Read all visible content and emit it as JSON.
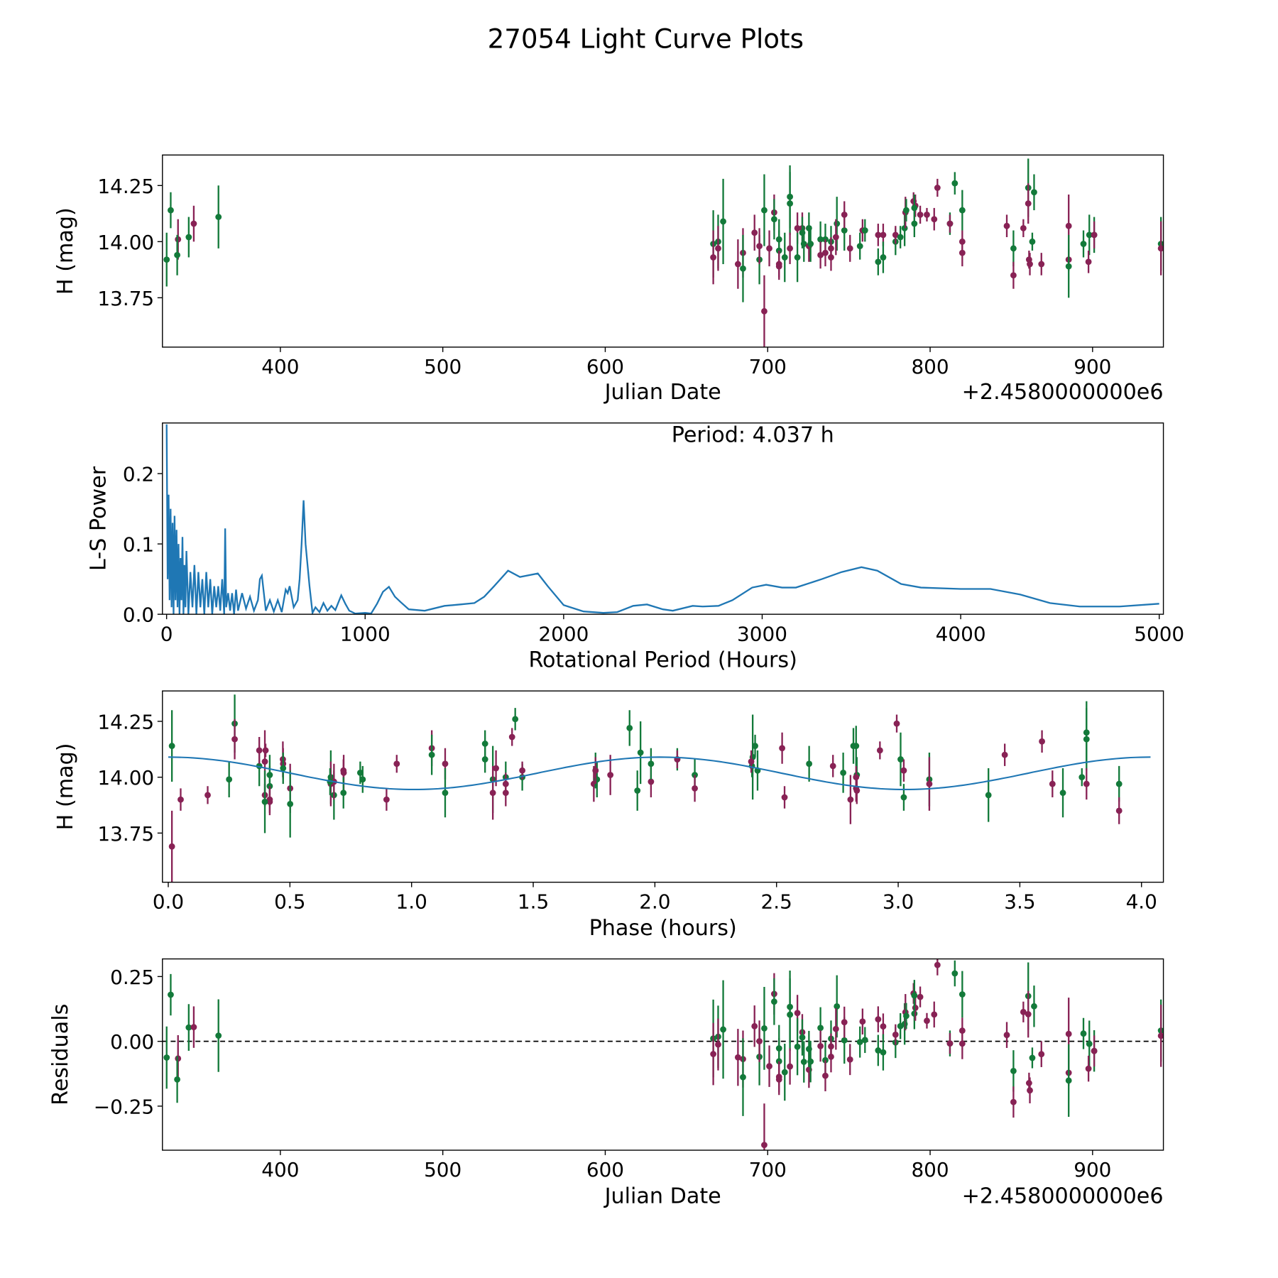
{
  "title": "27054 Light Curve Plots",
  "colors": {
    "g": "#137a3a",
    "m": "#882255",
    "curve": "#1f77b4"
  },
  "chart_data": [
    {
      "id": "lightcurve",
      "type": "scatter",
      "xlabel": "Julian Date",
      "ylabel": "H (mag)",
      "offset_text": "+2.4580000000e6",
      "xlim": [
        327.4,
        943.6
      ],
      "ylim": [
        13.53,
        14.386
      ],
      "xticks": [
        400,
        500,
        600,
        700,
        800,
        900
      ],
      "xtick_labels": [
        "400",
        "500",
        "600",
        "700",
        "800",
        "900"
      ],
      "yticks": [
        13.75,
        14.0,
        14.25
      ],
      "ytick_labels": [
        "13.75",
        "14.00",
        "14.25"
      ],
      "points_format": [
        "jd_offset",
        "H_mag",
        "err",
        "series"
      ],
      "points": [
        [
          330,
          13.92,
          0.12,
          "g"
        ],
        [
          332.5,
          14.14,
          0.08,
          "g"
        ],
        [
          337,
          14.01,
          0.09,
          "m"
        ],
        [
          336.5,
          13.94,
          0.09,
          "g"
        ],
        [
          343.6,
          14.02,
          0.09,
          "g"
        ],
        [
          346.7,
          14.08,
          0.08,
          "m"
        ],
        [
          361.9,
          14.11,
          0.14,
          "g"
        ],
        [
          666.5,
          13.99,
          0.15,
          "g"
        ],
        [
          666.5,
          13.93,
          0.12,
          "m"
        ],
        [
          669.5,
          14.0,
          0.12,
          "g"
        ],
        [
          669.5,
          13.97,
          0.1,
          "m"
        ],
        [
          672.6,
          14.09,
          0.19,
          "g"
        ],
        [
          681.7,
          13.9,
          0.11,
          "m"
        ],
        [
          684.8,
          13.95,
          0.11,
          "m"
        ],
        [
          684.8,
          13.88,
          0.15,
          "g"
        ],
        [
          691.9,
          14.04,
          0.08,
          "m"
        ],
        [
          694.9,
          13.92,
          0.11,
          "g"
        ],
        [
          694.9,
          13.98,
          0.08,
          "m"
        ],
        [
          697.9,
          14.14,
          0.16,
          "g"
        ],
        [
          697.9,
          13.69,
          0.16,
          "m"
        ],
        [
          701,
          13.97,
          0.08,
          "m"
        ],
        [
          704,
          14.13,
          0.08,
          "m"
        ],
        [
          704,
          14.1,
          0.09,
          "g"
        ],
        [
          707,
          14.01,
          0.09,
          "g"
        ],
        [
          707,
          13.96,
          0.09,
          "g"
        ],
        [
          707,
          13.9,
          0.06,
          "m"
        ],
        [
          707,
          13.89,
          0.06,
          "m"
        ],
        [
          710.5,
          13.93,
          0.11,
          "g"
        ],
        [
          713.7,
          14.2,
          0.14,
          "g"
        ],
        [
          713.7,
          14.17,
          0.14,
          "g"
        ],
        [
          713.7,
          13.97,
          0.07,
          "m"
        ],
        [
          718.3,
          14.06,
          0.07,
          "m"
        ],
        [
          718.3,
          13.93,
          0.11,
          "g"
        ],
        [
          721.3,
          14.06,
          0.07,
          "m"
        ],
        [
          721.3,
          14.04,
          0.07,
          "g"
        ],
        [
          722.3,
          13.99,
          0.08,
          "g"
        ],
        [
          725.4,
          13.98,
          0.07,
          "m"
        ],
        [
          725.4,
          14.06,
          0.07,
          "g"
        ],
        [
          726.4,
          13.99,
          0.08,
          "g"
        ],
        [
          732.5,
          14.01,
          0.08,
          "g"
        ],
        [
          732.5,
          13.94,
          0.06,
          "m"
        ],
        [
          735.5,
          14.01,
          0.07,
          "g"
        ],
        [
          735.5,
          13.95,
          0.06,
          "m"
        ],
        [
          739,
          14.0,
          0.07,
          "g"
        ],
        [
          739,
          13.97,
          0.05,
          "m"
        ],
        [
          739,
          13.93,
          0.06,
          "m"
        ],
        [
          742.6,
          14.08,
          0.12,
          "g"
        ],
        [
          742,
          14.02,
          0.08,
          "m"
        ],
        [
          747.2,
          14.05,
          0.09,
          "g"
        ],
        [
          747.2,
          14.12,
          0.06,
          "m"
        ],
        [
          750.7,
          13.97,
          0.06,
          "m"
        ],
        [
          758.4,
          14.05,
          0.05,
          "m"
        ],
        [
          756.8,
          13.98,
          0.06,
          "g"
        ],
        [
          759.9,
          14.05,
          0.05,
          "g"
        ],
        [
          768,
          14.03,
          0.05,
          "m"
        ],
        [
          768,
          13.91,
          0.06,
          "g"
        ],
        [
          771.1,
          14.03,
          0.05,
          "m"
        ],
        [
          771.1,
          13.93,
          0.07,
          "g"
        ],
        [
          778.7,
          14.0,
          0.06,
          "g"
        ],
        [
          778.7,
          14.03,
          0.04,
          "m"
        ],
        [
          781.7,
          14.02,
          0.05,
          "g"
        ],
        [
          784.3,
          14.06,
          0.08,
          "g"
        ],
        [
          784.8,
          14.13,
          0.07,
          "m"
        ],
        [
          785.3,
          14.14,
          0.05,
          "g"
        ],
        [
          789.8,
          14.18,
          0.04,
          "m"
        ],
        [
          790.3,
          14.08,
          0.06,
          "g"
        ],
        [
          790.9,
          14.16,
          0.05,
          "m"
        ],
        [
          790.3,
          14.15,
          0.06,
          "g"
        ],
        [
          793.9,
          14.12,
          0.04,
          "m"
        ],
        [
          798,
          14.12,
          0.03,
          "m"
        ],
        [
          802.5,
          14.1,
          0.05,
          "m"
        ],
        [
          804.5,
          14.24,
          0.04,
          "m"
        ],
        [
          812.2,
          14.08,
          0.05,
          "g"
        ],
        [
          812.2,
          14.08,
          0.04,
          "m"
        ],
        [
          815.2,
          14.26,
          0.05,
          "g"
        ],
        [
          819.8,
          14.14,
          0.09,
          "g"
        ],
        [
          819.8,
          14.0,
          0.05,
          "m"
        ],
        [
          819.8,
          13.95,
          0.06,
          "m"
        ],
        [
          847.2,
          14.07,
          0.05,
          "m"
        ],
        [
          851.3,
          13.97,
          0.08,
          "g"
        ],
        [
          851.3,
          13.85,
          0.06,
          "m"
        ],
        [
          857.4,
          14.06,
          0.04,
          "m"
        ],
        [
          860.4,
          14.24,
          0.13,
          "g"
        ],
        [
          860.4,
          14.17,
          0.09,
          "m"
        ],
        [
          860.9,
          13.92,
          0.04,
          "m"
        ],
        [
          861.4,
          13.9,
          0.05,
          "m"
        ],
        [
          862.9,
          14.0,
          0.04,
          "g"
        ],
        [
          864,
          14.22,
          0.08,
          "g"
        ],
        [
          868.5,
          13.9,
          0.05,
          "m"
        ],
        [
          885.3,
          14.07,
          0.14,
          "m"
        ],
        [
          885.3,
          13.92,
          0.05,
          "m"
        ],
        [
          885.3,
          13.89,
          0.14,
          "g"
        ],
        [
          894.4,
          13.99,
          0.06,
          "g"
        ],
        [
          898,
          14.03,
          0.09,
          "g"
        ],
        [
          897.5,
          13.91,
          0.05,
          "m"
        ],
        [
          901,
          14.03,
          0.08,
          "g"
        ],
        [
          901,
          14.03,
          0.06,
          "m"
        ],
        [
          942.1,
          13.99,
          0.12,
          "g"
        ],
        [
          942.1,
          13.97,
          0.12,
          "m"
        ]
      ]
    },
    {
      "id": "periodogram",
      "type": "line",
      "xlabel": "Rotational Period (Hours)",
      "ylabel": "L-S Power",
      "annotation": "Period: 4.037 h",
      "xlim": [
        -21,
        5021
      ],
      "ylim": [
        0,
        0.272
      ],
      "xticks": [
        0,
        1000,
        2000,
        3000,
        4000,
        5000
      ],
      "xtick_labels": [
        "0",
        "1000",
        "2000",
        "3000",
        "4000",
        "5000"
      ],
      "yticks": [
        0,
        0.1,
        0.2
      ],
      "ytick_labels": [
        "0.0",
        "0.1",
        "0.2"
      ],
      "curve": [
        [
          0,
          0.27
        ],
        [
          5,
          0.05
        ],
        [
          10,
          0.17
        ],
        [
          15,
          0.02
        ],
        [
          20,
          0.15
        ],
        [
          25,
          0.01
        ],
        [
          30,
          0.13
        ],
        [
          35,
          0.0
        ],
        [
          40,
          0.14
        ],
        [
          45,
          0.02
        ],
        [
          50,
          0.12
        ],
        [
          55,
          0.01
        ],
        [
          60,
          0.1
        ],
        [
          65,
          0.0
        ],
        [
          70,
          0.08
        ],
        [
          75,
          0.02
        ],
        [
          80,
          0.11
        ],
        [
          85,
          0.0
        ],
        [
          90,
          0.07
        ],
        [
          95,
          0.01
        ],
        [
          100,
          0.09
        ],
        [
          110,
          0.0
        ],
        [
          120,
          0.06
        ],
        [
          130,
          0.01
        ],
        [
          140,
          0.07
        ],
        [
          150,
          0.0
        ],
        [
          160,
          0.06
        ],
        [
          170,
          0.01
        ],
        [
          180,
          0.05
        ],
        [
          190,
          0.0
        ],
        [
          200,
          0.06
        ],
        [
          210,
          0.01
        ],
        [
          220,
          0.05
        ],
        [
          230,
          0.0
        ],
        [
          240,
          0.04
        ],
        [
          250,
          0.01
        ],
        [
          260,
          0.04
        ],
        [
          270,
          0.005
        ],
        [
          280,
          0.05
        ],
        [
          290,
          0.0
        ],
        [
          295,
          0.122
        ],
        [
          300,
          0.01
        ],
        [
          310,
          0.03
        ],
        [
          320,
          0.005
        ],
        [
          330,
          0.03
        ],
        [
          340,
          0.0
        ],
        [
          350,
          0.035
        ],
        [
          360,
          0.005
        ],
        [
          380,
          0.03
        ],
        [
          400,
          0.008
        ],
        [
          420,
          0.025
        ],
        [
          440,
          0.005
        ],
        [
          460,
          0.02
        ],
        [
          470,
          0.05
        ],
        [
          480,
          0.055
        ],
        [
          490,
          0.03
        ],
        [
          500,
          0.005
        ],
        [
          520,
          0.02
        ],
        [
          540,
          0.004
        ],
        [
          560,
          0.02
        ],
        [
          580,
          0.003
        ],
        [
          600,
          0.035
        ],
        [
          610,
          0.03
        ],
        [
          620,
          0.04
        ],
        [
          640,
          0.01
        ],
        [
          660,
          0.02
        ],
        [
          670,
          0.05
        ],
        [
          680,
          0.1
        ],
        [
          690,
          0.162
        ],
        [
          700,
          0.1
        ],
        [
          710,
          0.07
        ],
        [
          720,
          0.04
        ],
        [
          735,
          0.002
        ],
        [
          750,
          0.01
        ],
        [
          770,
          0.003
        ],
        [
          790,
          0.016
        ],
        [
          810,
          0.005
        ],
        [
          830,
          0.012
        ],
        [
          850,
          0.006
        ],
        [
          880,
          0.027
        ],
        [
          900,
          0.015
        ],
        [
          920,
          0.005
        ],
        [
          950,
          0.001
        ],
        [
          1000,
          0.002
        ],
        [
          1030,
          0.001
        ],
        [
          1060,
          0.015
        ],
        [
          1090,
          0.032
        ],
        [
          1120,
          0.039
        ],
        [
          1150,
          0.025
        ],
        [
          1180,
          0.017
        ],
        [
          1220,
          0.007
        ],
        [
          1300,
          0.005
        ],
        [
          1400,
          0.012
        ],
        [
          1480,
          0.014
        ],
        [
          1550,
          0.016
        ],
        [
          1600,
          0.025
        ],
        [
          1650,
          0.04
        ],
        [
          1720,
          0.062
        ],
        [
          1780,
          0.053
        ],
        [
          1870,
          0.058
        ],
        [
          1920,
          0.04
        ],
        [
          2000,
          0.013
        ],
        [
          2100,
          0.004
        ],
        [
          2200,
          0.002
        ],
        [
          2270,
          0.003
        ],
        [
          2350,
          0.012
        ],
        [
          2420,
          0.014
        ],
        [
          2500,
          0.007
        ],
        [
          2550,
          0.005
        ],
        [
          2650,
          0.012
        ],
        [
          2700,
          0.011
        ],
        [
          2780,
          0.012
        ],
        [
          2850,
          0.02
        ],
        [
          2950,
          0.038
        ],
        [
          3020,
          0.042
        ],
        [
          3100,
          0.038
        ],
        [
          3170,
          0.038
        ],
        [
          3300,
          0.05
        ],
        [
          3400,
          0.06
        ],
        [
          3500,
          0.067
        ],
        [
          3580,
          0.062
        ],
        [
          3700,
          0.043
        ],
        [
          3800,
          0.038
        ],
        [
          4000,
          0.036
        ],
        [
          4150,
          0.036
        ],
        [
          4300,
          0.028
        ],
        [
          4450,
          0.016
        ],
        [
          4600,
          0.011
        ],
        [
          4800,
          0.011
        ],
        [
          5000,
          0.015
        ]
      ]
    },
    {
      "id": "phased",
      "type": "scatter",
      "xlabel": "Phase (hours)",
      "ylabel": "H (mag)",
      "period_hours": 4.037,
      "model": {
        "mean": 14.0175,
        "amplitude": 0.0725
      },
      "xlim": [
        -0.024,
        4.09
      ],
      "ylim": [
        13.53,
        14.386
      ],
      "xticks": [
        0,
        0.5,
        1,
        1.5,
        2,
        2.5,
        3,
        3.5,
        4
      ],
      "xtick_labels": [
        "0.0",
        "0.5",
        "1.0",
        "1.5",
        "2.0",
        "2.5",
        "3.0",
        "3.5",
        "4.0"
      ],
      "yticks": [
        13.75,
        14.0,
        14.25
      ],
      "ytick_labels": [
        "13.75",
        "14.00",
        "14.25"
      ]
    },
    {
      "id": "residuals",
      "type": "scatter",
      "xlabel": "Julian Date",
      "ylabel": "Residuals",
      "offset_text": "+2.4580000000e6",
      "xlim": [
        327.4,
        943.6
      ],
      "ylim": [
        -0.42,
        0.318
      ],
      "xticks": [
        400,
        500,
        600,
        700,
        800,
        900
      ],
      "xtick_labels": [
        "400",
        "500",
        "600",
        "700",
        "800",
        "900"
      ],
      "yticks": [
        -0.25,
        0,
        0.25
      ],
      "ytick_labels": [
        "−0.25",
        "0.00",
        "0.25"
      ]
    }
  ]
}
